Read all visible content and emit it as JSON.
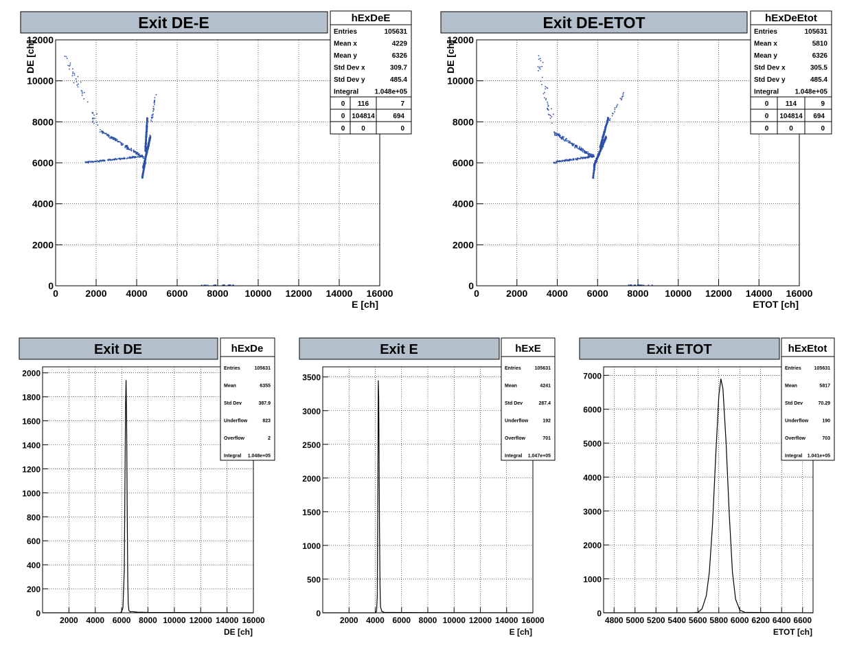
{
  "chart_data": [
    {
      "type": "scatter",
      "title": "Exit DE-E",
      "xlabel": "E [ch]",
      "ylabel": "DE [ch]",
      "xlim": [
        0,
        16000
      ],
      "ylim": [
        0,
        12000
      ],
      "xticks": [
        "0",
        "2000",
        "4000",
        "6000",
        "8000",
        "10000",
        "12000",
        "14000",
        "16000"
      ],
      "yticks": [
        "0",
        "2000",
        "4000",
        "6000",
        "8000",
        "10000",
        "12000"
      ],
      "grid": true,
      "legend_position": "top-right",
      "color": "#2b50a8",
      "stats": {
        "name": "hExDeE",
        "rows": [
          {
            "key": "Entries",
            "value": "105631"
          },
          {
            "key": "Mean x",
            "value": "4229"
          },
          {
            "key": "Mean y",
            "value": "6326"
          },
          {
            "key": "Std Dev x",
            "value": "309.7"
          },
          {
            "key": "Std Dev y",
            "value": "485.4"
          },
          {
            "key": "Integral",
            "value": "1.048e+05"
          }
        ],
        "grid": [
          [
            "0",
            "116",
            "7"
          ],
          [
            "0",
            "104814",
            "694"
          ],
          [
            "0",
            "0",
            "0"
          ]
        ]
      },
      "clusters": [
        {
          "x": [
            4300,
            4650
          ],
          "y": [
            5800,
            7300
          ],
          "n": 700,
          "spread": [
            40,
            90
          ]
        },
        {
          "x": [
            4400,
            4500
          ],
          "y": [
            6600,
            8200
          ],
          "n": 500,
          "spread": [
            35,
            80
          ]
        },
        {
          "x": [
            4250,
            4400
          ],
          "y": [
            5300,
            6100
          ],
          "n": 200,
          "spread": [
            35,
            80
          ]
        },
        {
          "x": [
            1500,
            4300
          ],
          "y": [
            6050,
            6350
          ],
          "n": 160,
          "spread": [
            80,
            60
          ]
        },
        {
          "x": [
            2200,
            4300
          ],
          "y": [
            7600,
            6300
          ],
          "n": 150,
          "spread": [
            80,
            110
          ]
        },
        {
          "x": [
            300,
            2000
          ],
          "y": [
            11500,
            8000
          ],
          "n": 45,
          "spread": [
            200,
            300
          ]
        },
        {
          "x": [
            4700,
            4900
          ],
          "y": [
            8000,
            9300
          ],
          "n": 25,
          "spread": [
            60,
            120
          ]
        },
        {
          "x": [
            7000,
            8800
          ],
          "y": [
            60,
            60
          ],
          "n": 20,
          "spread": [
            200,
            10
          ]
        }
      ]
    },
    {
      "type": "scatter",
      "title": "Exit DE-ETOT",
      "xlabel": "ETOT [ch]",
      "ylabel": "DE [ch]",
      "xlim": [
        0,
        16000
      ],
      "ylim": [
        0,
        12000
      ],
      "xticks": [
        "0",
        "2000",
        "4000",
        "6000",
        "8000",
        "10000",
        "12000",
        "14000",
        "16000"
      ],
      "yticks": [
        "0",
        "2000",
        "4000",
        "6000",
        "8000",
        "10000",
        "12000"
      ],
      "grid": true,
      "legend_position": "top-right",
      "color": "#2b50a8",
      "stats": {
        "name": "hExDeEtot",
        "rows": [
          {
            "key": "Entries",
            "value": "105631"
          },
          {
            "key": "Mean x",
            "value": "5810"
          },
          {
            "key": "Mean y",
            "value": "6326"
          },
          {
            "key": "Std Dev x",
            "value": "305.5"
          },
          {
            "key": "Std Dev y",
            "value": "485.4"
          },
          {
            "key": "Integral",
            "value": "1.048e+05"
          }
        ],
        "grid": [
          [
            "0",
            "114",
            "9"
          ],
          [
            "0",
            "104814",
            "694"
          ],
          [
            "0",
            "0",
            "0"
          ]
        ]
      },
      "clusters": [
        {
          "x": [
            5800,
            6400
          ],
          "y": [
            5900,
            7300
          ],
          "n": 700,
          "spread": [
            40,
            90
          ]
        },
        {
          "x": [
            6100,
            6500
          ],
          "y": [
            6800,
            8200
          ],
          "n": 500,
          "spread": [
            35,
            80
          ]
        },
        {
          "x": [
            5750,
            5850
          ],
          "y": [
            5300,
            6100
          ],
          "n": 200,
          "spread": [
            35,
            80
          ]
        },
        {
          "x": [
            3800,
            5800
          ],
          "y": [
            6050,
            6350
          ],
          "n": 160,
          "spread": [
            80,
            60
          ]
        },
        {
          "x": [
            3800,
            5800
          ],
          "y": [
            7500,
            6300
          ],
          "n": 150,
          "spread": [
            80,
            110
          ]
        },
        {
          "x": [
            3000,
            3700
          ],
          "y": [
            11500,
            8000
          ],
          "n": 40,
          "spread": [
            200,
            300
          ]
        },
        {
          "x": [
            6500,
            7300
          ],
          "y": [
            8000,
            9500
          ],
          "n": 20,
          "spread": [
            60,
            120
          ]
        },
        {
          "x": [
            7500,
            8800
          ],
          "y": [
            60,
            60
          ],
          "n": 20,
          "spread": [
            200,
            10
          ]
        }
      ]
    },
    {
      "type": "line",
      "title": "Exit DE",
      "xlabel": "DE [ch]",
      "ylabel": "",
      "xlim": [
        0,
        16000
      ],
      "ylim": [
        0,
        2050
      ],
      "xticks": [
        "2000",
        "4000",
        "6000",
        "8000",
        "10000",
        "12000",
        "14000",
        "16000"
      ],
      "yticks": [
        "0",
        "200",
        "400",
        "600",
        "800",
        "1000",
        "1200",
        "1400",
        "1600",
        "1800",
        "2000"
      ],
      "grid": true,
      "stats": {
        "name": "hExDe",
        "rows": [
          {
            "key": "Entries",
            "value": "105631"
          },
          {
            "key": "Mean",
            "value": "6355"
          },
          {
            "key": "Std Dev",
            "value": "387.9"
          },
          {
            "key": "Underflow",
            "value": "823"
          },
          {
            "key": "Overflow",
            "value": "2"
          },
          {
            "key": "Integral",
            "value": "1.048e+05"
          }
        ]
      },
      "x": [
        0,
        5900,
        6000,
        6100,
        6200,
        6250,
        6300,
        6340,
        6380,
        6420,
        6460,
        6500,
        6550,
        6650,
        6800,
        7200,
        8000,
        16000
      ],
      "values": [
        0,
        0,
        10,
        40,
        350,
        1050,
        1750,
        1940,
        1600,
        900,
        300,
        80,
        20,
        8,
        10,
        5,
        3,
        0
      ]
    },
    {
      "type": "line",
      "title": "Exit E",
      "xlabel": "E [ch]",
      "ylabel": "",
      "xlim": [
        0,
        16000
      ],
      "ylim": [
        0,
        3650
      ],
      "xticks": [
        "2000",
        "4000",
        "6000",
        "8000",
        "10000",
        "12000",
        "14000",
        "16000"
      ],
      "yticks": [
        "0",
        "500",
        "1000",
        "1500",
        "2000",
        "2500",
        "3000",
        "3500"
      ],
      "grid": true,
      "stats": {
        "name": "hExE",
        "rows": [
          {
            "key": "Entries",
            "value": "105631"
          },
          {
            "key": "Mean",
            "value": "4241"
          },
          {
            "key": "Std Dev",
            "value": "287.4"
          },
          {
            "key": "Underflow",
            "value": "192"
          },
          {
            "key": "Overflow",
            "value": "701"
          },
          {
            "key": "Integral",
            "value": "1.047e+05"
          }
        ]
      },
      "x": [
        0,
        4000,
        4100,
        4150,
        4200,
        4230,
        4260,
        4290,
        4320,
        4360,
        4400,
        4500,
        4700,
        8000,
        16000
      ],
      "values": [
        0,
        0,
        20,
        250,
        1900,
        3450,
        3200,
        2400,
        1300,
        400,
        90,
        20,
        5,
        3,
        0
      ]
    },
    {
      "type": "line",
      "title": "Exit ETOT",
      "xlabel": "ETOT [ch]",
      "ylabel": "",
      "xlim": [
        4700,
        6700
      ],
      "ylim": [
        0,
        7250
      ],
      "xticks": [
        "4800",
        "5000",
        "5200",
        "5400",
        "5600",
        "5800",
        "6000",
        "6200",
        "6400",
        "6600"
      ],
      "yticks": [
        "0",
        "1000",
        "2000",
        "3000",
        "4000",
        "5000",
        "6000",
        "7000"
      ],
      "grid": true,
      "stats": {
        "name": "hExEtot",
        "rows": [
          {
            "key": "Entries",
            "value": "105631"
          },
          {
            "key": "Mean",
            "value": "5817"
          },
          {
            "key": "Std Dev",
            "value": "70.29"
          },
          {
            "key": "Underflow",
            "value": "190"
          },
          {
            "key": "Overflow",
            "value": "703"
          },
          {
            "key": "Integral",
            "value": "1.041e+05"
          }
        ]
      },
      "x": [
        4700,
        5550,
        5600,
        5640,
        5680,
        5710,
        5740,
        5770,
        5800,
        5820,
        5840,
        5870,
        5900,
        5930,
        5960,
        6000,
        6050,
        6700
      ],
      "values": [
        0,
        0,
        10,
        120,
        500,
        1200,
        2600,
        4600,
        6400,
        6900,
        6600,
        5000,
        2900,
        1200,
        400,
        80,
        10,
        0
      ]
    }
  ]
}
